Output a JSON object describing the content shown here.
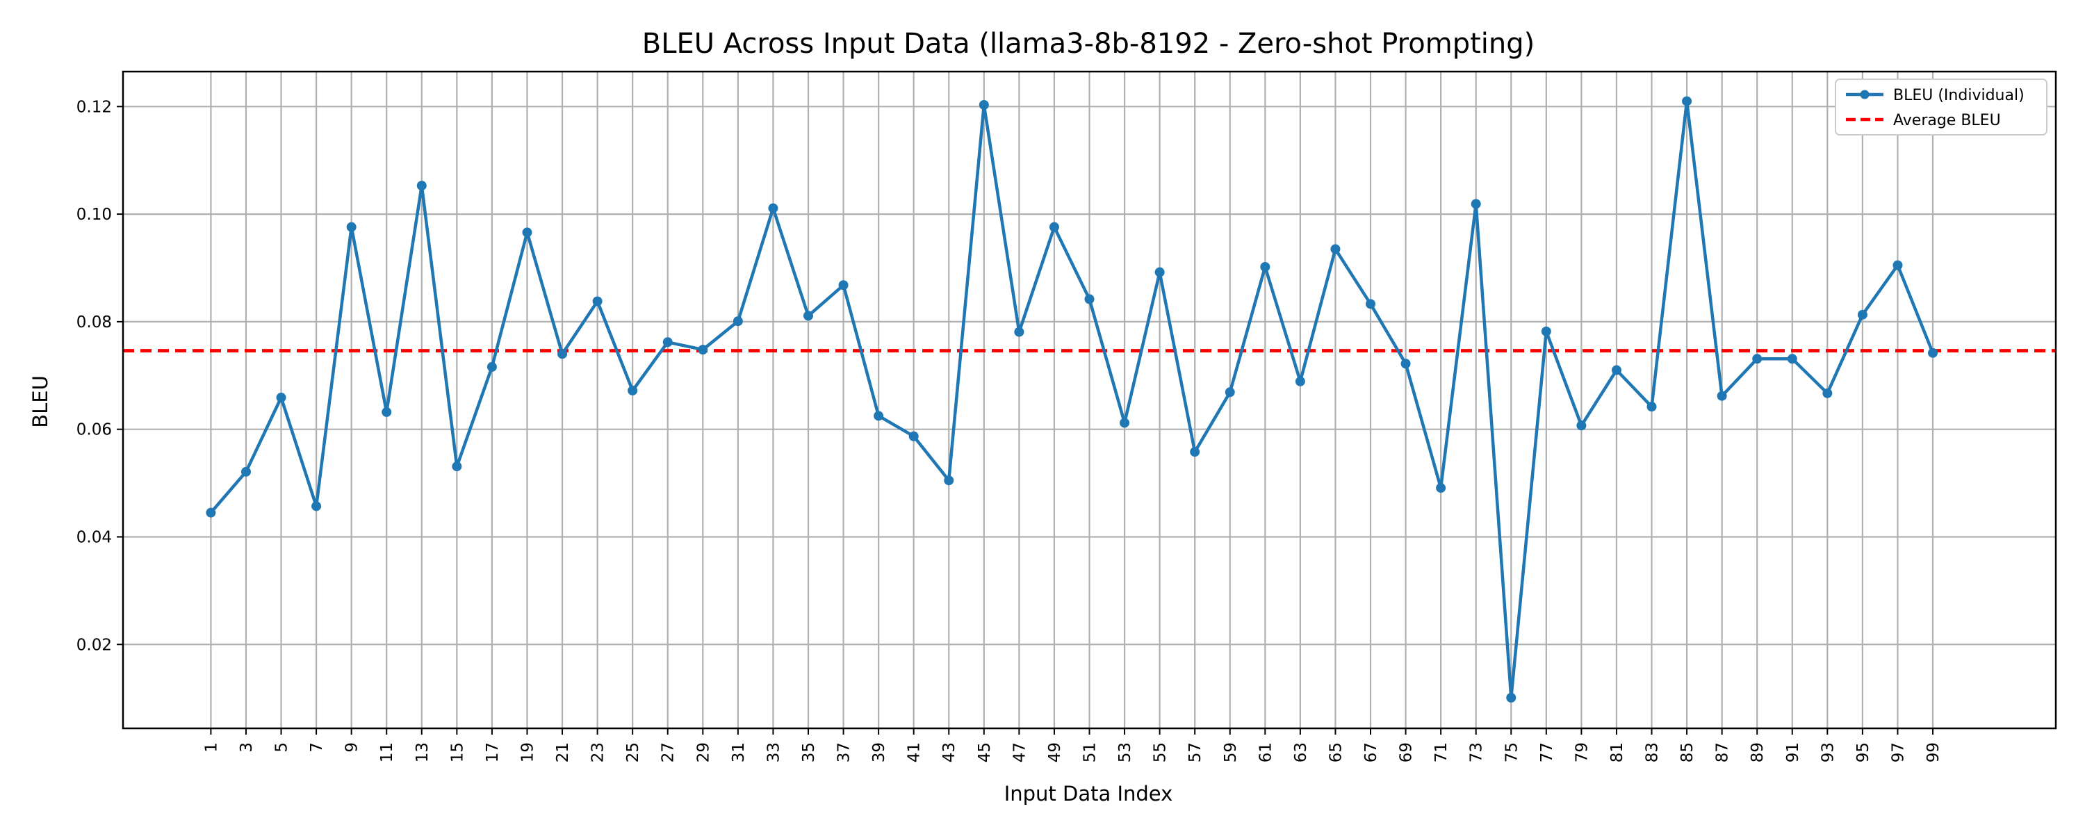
{
  "chart_data": {
    "type": "line",
    "title": "BLEU Across Input Data (llama3-8b-8192 - Zero-shot Prompting)",
    "xlabel": "Input Data Index",
    "ylabel": "BLEU",
    "xlim": [
      -4,
      106
    ],
    "ylim": [
      0.0044,
      0.1265
    ],
    "x_ticks": [
      1,
      3,
      5,
      7,
      9,
      11,
      13,
      15,
      17,
      19,
      21,
      23,
      25,
      27,
      29,
      31,
      33,
      35,
      37,
      39,
      41,
      43,
      45,
      47,
      49,
      51,
      53,
      55,
      57,
      59,
      61,
      63,
      65,
      67,
      69,
      71,
      73,
      75,
      77,
      79,
      81,
      83,
      85,
      87,
      89,
      91,
      93,
      95,
      97,
      99
    ],
    "y_ticks": [
      0.02,
      0.04,
      0.06,
      0.08,
      0.1,
      0.12
    ],
    "y_tick_labels": [
      "0.02",
      "0.04",
      "0.06",
      "0.08",
      "0.10",
      "0.12"
    ],
    "grid": true,
    "legend_position": "top-right",
    "series": [
      {
        "name": "BLEU (Individual)",
        "color": "#1f77b4",
        "style": "solid-with-markers",
        "x": [
          1,
          3,
          5,
          7,
          9,
          11,
          13,
          15,
          17,
          19,
          21,
          23,
          25,
          27,
          29,
          31,
          33,
          35,
          37,
          39,
          41,
          43,
          45,
          47,
          49,
          51,
          53,
          55,
          57,
          59,
          61,
          63,
          65,
          67,
          69,
          71,
          73,
          75,
          77,
          79,
          81,
          83,
          85,
          87,
          89,
          91,
          93,
          95,
          97,
          99
        ],
        "values": [
          0.0445,
          0.0521,
          0.0659,
          0.0457,
          0.0976,
          0.0632,
          0.1053,
          0.0531,
          0.0716,
          0.0966,
          0.074,
          0.0838,
          0.0672,
          0.0762,
          0.0748,
          0.0801,
          0.1011,
          0.0811,
          0.0868,
          0.0625,
          0.0587,
          0.0505,
          0.1203,
          0.0781,
          0.0976,
          0.0842,
          0.0612,
          0.0892,
          0.0558,
          0.0669,
          0.0902,
          0.0689,
          0.0935,
          0.0833,
          0.0722,
          0.0491,
          0.1019,
          0.0101,
          0.0782,
          0.0607,
          0.071,
          0.0642,
          0.121,
          0.0662,
          0.0731,
          0.0731,
          0.0667,
          0.0813,
          0.0905,
          0.0742
        ]
      },
      {
        "name": "Average BLEU",
        "color": "#ff0000",
        "style": "dashed",
        "y": 0.0746
      }
    ]
  }
}
